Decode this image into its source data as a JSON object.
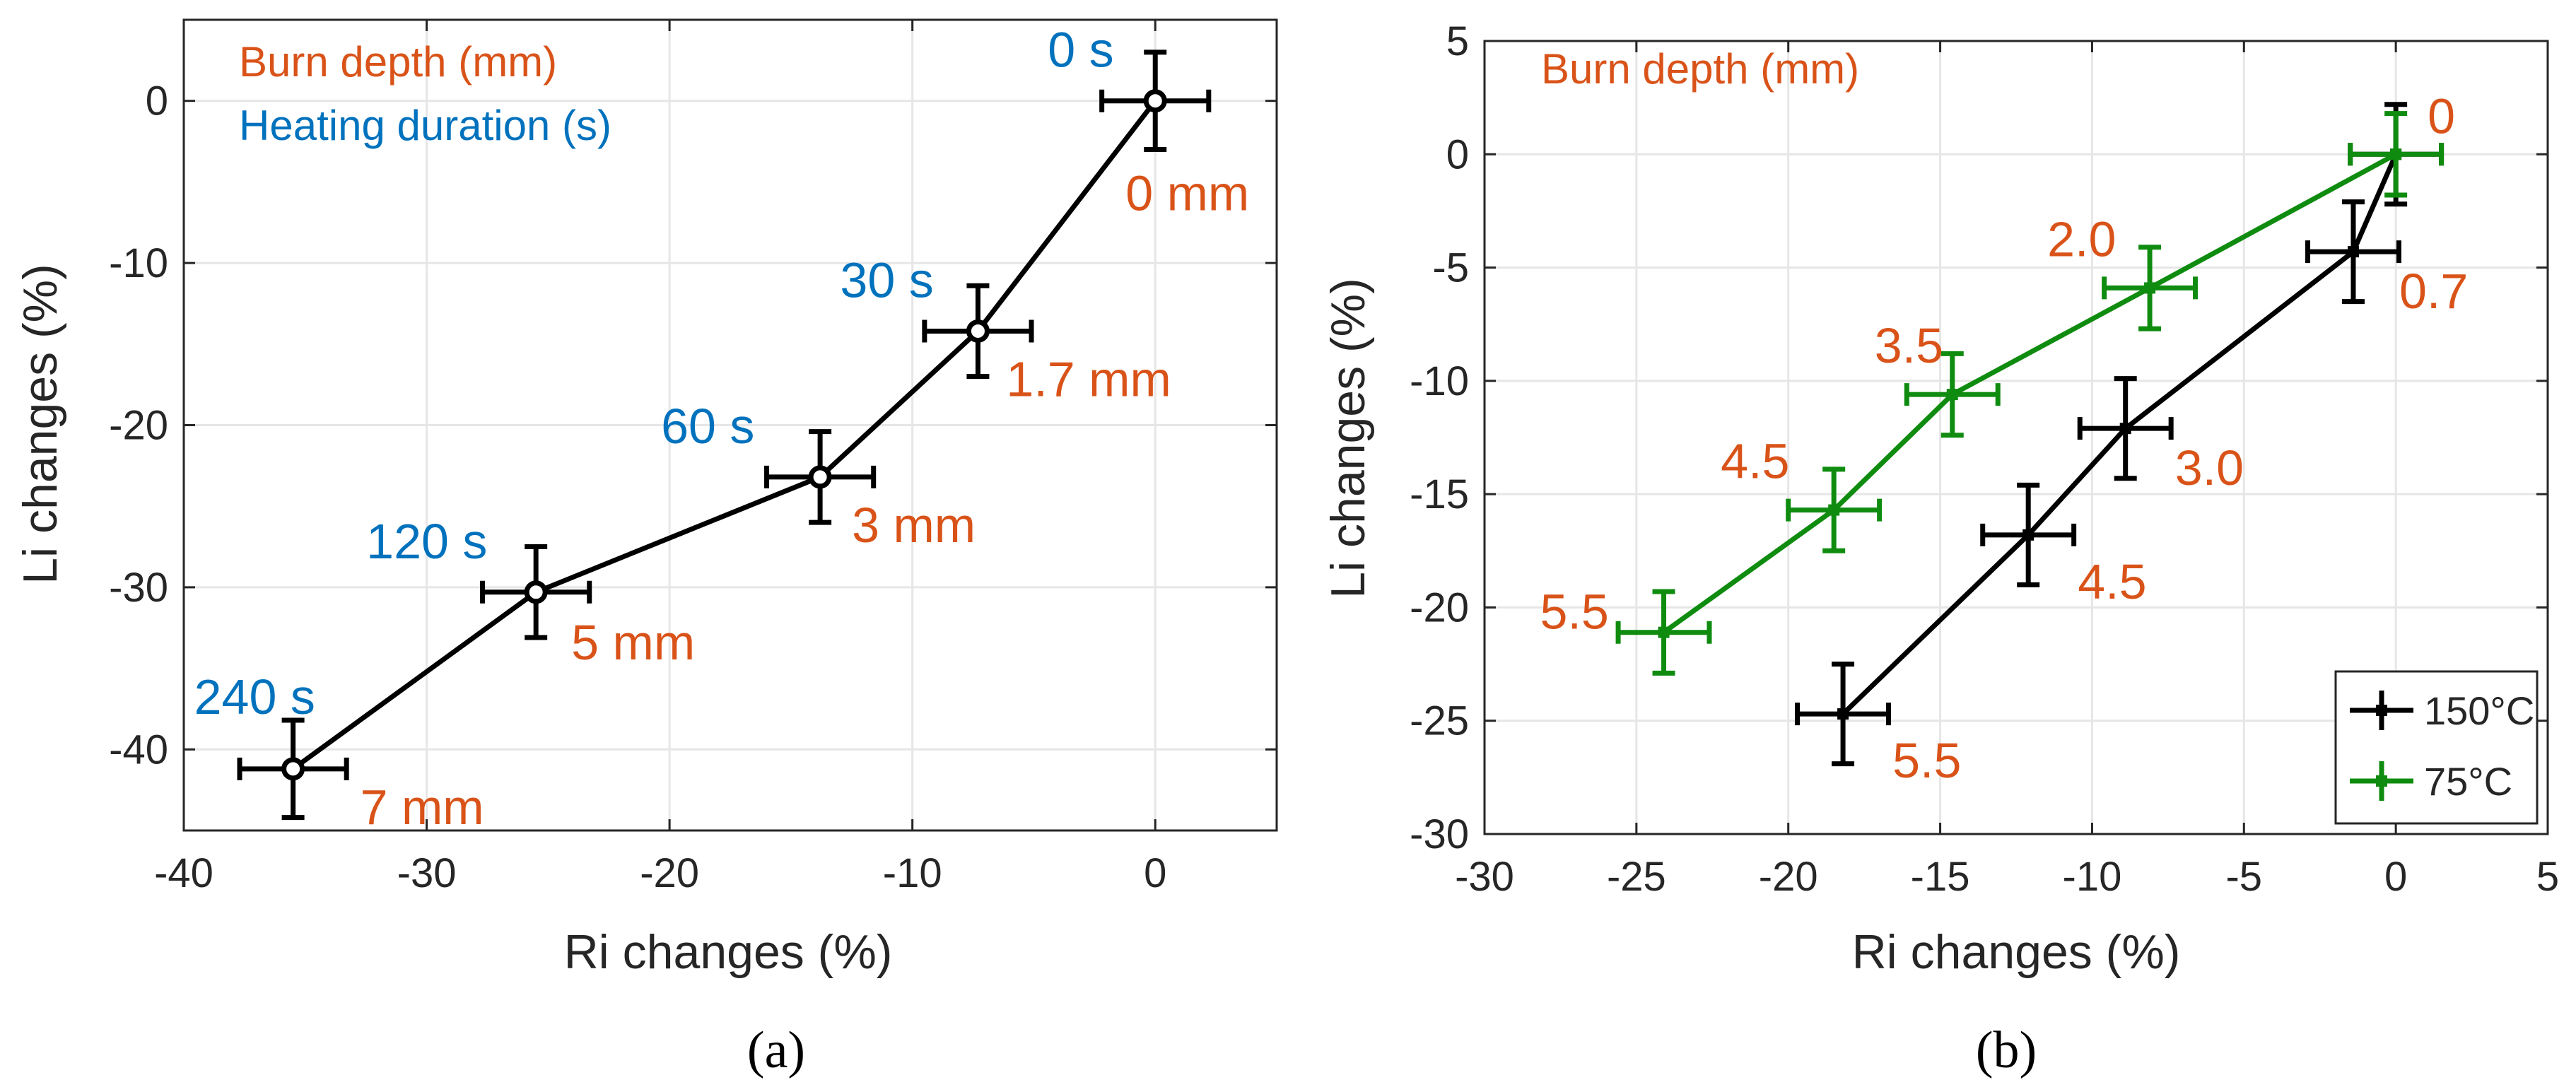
{
  "chart_data": [
    {
      "type": "line",
      "panel": "a",
      "caption": "(a)",
      "xlabel": "Ri changes (%)",
      "ylabel": "Li changes (%)",
      "xlim": [
        -40,
        5
      ],
      "ylim": [
        -45,
        5
      ],
      "xticks": [
        -40,
        -30,
        -20,
        -10,
        0
      ],
      "xtick_labels": [
        "-40",
        "-30",
        "-20",
        "-10",
        "0"
      ],
      "yticks": [
        0,
        -10,
        -20,
        -30,
        -40
      ],
      "ytick_labels": [
        "0",
        "-10",
        "-20",
        "-30",
        "-40"
      ],
      "grid": true,
      "header_lines": [
        {
          "text": "Burn depth (mm)",
          "color": "#d95319"
        },
        {
          "text": "Heating duration (s)",
          "color": "#0072bd"
        }
      ],
      "series": [
        {
          "name": "data",
          "color": "#000000",
          "x": [
            -35.5,
            -25.5,
            -13.8,
            -7.3,
            0
          ],
          "y": [
            -41.2,
            -30.3,
            -23.2,
            -14.2,
            0
          ],
          "xerr": [
            2.2,
            2.2,
            2.2,
            2.2,
            2.2
          ],
          "yerr": [
            3.0,
            2.8,
            2.8,
            2.8,
            3.0
          ]
        }
      ],
      "blue_labels": [
        "240 s",
        "120 s",
        "60 s",
        "30 s",
        "0 s"
      ],
      "orange_labels": [
        "7 mm",
        "5 mm",
        "3 mm",
        "1.7 mm",
        "0 mm"
      ]
    },
    {
      "type": "line",
      "panel": "b",
      "caption": "(b)",
      "xlabel": "Ri changes (%)",
      "ylabel": "Li changes (%)",
      "xlim": [
        -30,
        5
      ],
      "ylim": [
        -30,
        5
      ],
      "xticks": [
        -30,
        -25,
        -20,
        -15,
        -10,
        -5,
        0,
        5
      ],
      "xtick_labels": [
        "-30",
        "-25",
        "-20",
        "-15",
        "-10",
        "-5",
        "0",
        "5"
      ],
      "yticks": [
        5,
        0,
        -5,
        -10,
        -15,
        -20,
        -25,
        -30
      ],
      "ytick_labels": [
        "5",
        "0",
        "-5",
        "-10",
        "-15",
        "-20",
        "-25",
        "-30"
      ],
      "grid": true,
      "header_lines": [
        {
          "text": "Burn depth (mm)",
          "color": "#d95319"
        }
      ],
      "legend_position": "bottom-right",
      "series": [
        {
          "name": "150°C",
          "color": "#000000",
          "x": [
            -18.2,
            -12.1,
            -8.9,
            -1.4,
            0
          ],
          "y": [
            -24.7,
            -16.8,
            -12.1,
            -4.3,
            0
          ],
          "xerr": [
            1.5,
            1.5,
            1.5,
            1.5,
            1.5
          ],
          "yerr": [
            2.2,
            2.2,
            2.2,
            2.2,
            2.2
          ],
          "point_labels": [
            "5.5",
            "4.5",
            "3.0",
            "0.7",
            "0"
          ]
        },
        {
          "name": "75°C",
          "color": "#0f8c0f",
          "x": [
            -24.1,
            -18.5,
            -14.6,
            -8.1,
            0
          ],
          "y": [
            -21.1,
            -15.7,
            -10.6,
            -5.9,
            0
          ],
          "xerr": [
            1.5,
            1.5,
            1.5,
            1.5,
            1.5
          ],
          "yerr": [
            1.8,
            1.8,
            1.8,
            1.8,
            1.8
          ],
          "point_labels": [
            "5.5",
            "4.5",
            "3.5",
            "2.0",
            "0"
          ]
        }
      ]
    }
  ]
}
